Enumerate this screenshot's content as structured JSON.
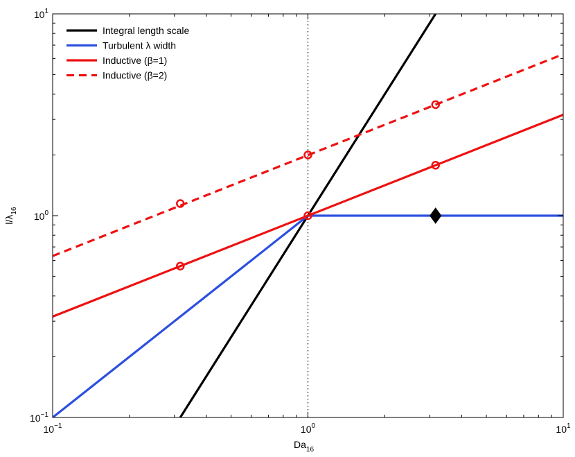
{
  "chart_data": {
    "type": "line",
    "xscale": "log",
    "yscale": "log",
    "xlim": [
      0.1,
      10
    ],
    "ylim": [
      0.1,
      10
    ],
    "xlabel": {
      "main": "Da",
      "sub": "16"
    },
    "ylabel": {
      "main": "l/λ",
      "sub": "16"
    },
    "grid": false,
    "legend_position": "top-left",
    "x_ticks": [
      {
        "value": 0.1,
        "base": "10",
        "exp": "−1"
      },
      {
        "value": 1,
        "base": "10",
        "exp": "0"
      },
      {
        "value": 10,
        "base": "10",
        "exp": "1"
      }
    ],
    "y_ticks": [
      {
        "value": 0.1,
        "base": "10",
        "exp": "−1"
      },
      {
        "value": 1,
        "base": "10",
        "exp": "0"
      },
      {
        "value": 10,
        "base": "10",
        "exp": "1"
      }
    ],
    "series": [
      {
        "name": "Integral length scale",
        "color": "#000000",
        "style": "solid",
        "points": [
          [
            0.3162,
            0.1
          ],
          [
            3.162,
            10
          ]
        ],
        "markers": []
      },
      {
        "name": "Turbulent λ width",
        "color": "#2c4fe0",
        "style": "solid",
        "points": [
          [
            0.1,
            0.1
          ],
          [
            1,
            1
          ],
          [
            10,
            1
          ]
        ],
        "markers": []
      },
      {
        "name": "Inductive (β=1)",
        "color": "#ee1111",
        "style": "solid",
        "points": [
          [
            0.1,
            0.3162
          ],
          [
            10,
            3.162
          ]
        ],
        "markers": [
          [
            0.3162,
            0.5623
          ],
          [
            1,
            1
          ],
          [
            3.162,
            1.778
          ]
        ]
      },
      {
        "name": "Inductive (β=2)",
        "color": "#ee1111",
        "style": "dashed",
        "points": [
          [
            0.1,
            0.631
          ],
          [
            10,
            6.31
          ]
        ],
        "markers": [
          [
            0.3162,
            1.148
          ],
          [
            1,
            2.0
          ],
          [
            3.162,
            3.55
          ]
        ]
      }
    ],
    "reference_lines": [
      {
        "orientation": "vertical",
        "x": 1,
        "style": "dotted",
        "color": "#000000"
      }
    ],
    "special_markers": [
      {
        "shape": "diamond",
        "x": 3.162,
        "y": 1,
        "color": "#000000"
      }
    ]
  }
}
